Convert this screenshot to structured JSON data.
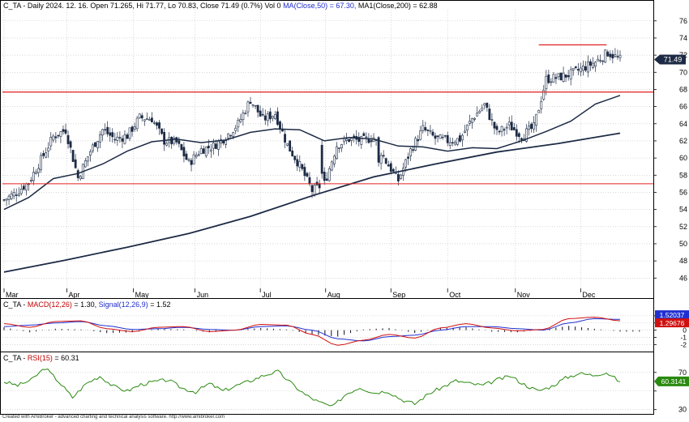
{
  "header": {
    "main_a": "C_TA - Daily 2024. 12. 16. Open 71.265, Hi 71.77, Lo 70.83, Close 71.49 (0.7%) Vol 0",
    "main_b": " MA(Close,50) = 67.30,",
    "main_c": " MA1(Close,200) = 62.88",
    "macd_a": "C_TA - ",
    "macd_b": "MACD(12,26)",
    "macd_c": " = 1.30, ",
    "macd_d": "Signal(12,26,9)",
    "macd_e": " = 1.52",
    "rsi_a": "C_TA - ",
    "rsi_b": "RSI(15)",
    "rsi_c": " = 60.31"
  },
  "footer": "Created with AmiBroker - advanced charting and technical analysis software. http://www.amibroker.com",
  "colors": {
    "price_line": "#1c2a44",
    "candle_up": "#ffffff",
    "candle_down": "#1c2a44",
    "hline": "#e02020",
    "macd": "#d01010",
    "signal": "#2030d0",
    "rsi": "#2a8a10",
    "last_label": "#1c2a44",
    "grid": "#bfbfbf"
  },
  "chart_data": [
    {
      "type": "candlestick",
      "title": "C_TA - Daily",
      "x_labels": [
        "Mar",
        "Apr",
        "May",
        "Jun",
        "Jul",
        "Aug",
        "Sep",
        "Oct",
        "Nov",
        "Dec"
      ],
      "y_ticks": [
        46,
        48,
        50,
        52,
        54,
        56,
        58,
        60,
        62,
        64,
        66,
        68,
        70,
        72,
        74,
        76
      ],
      "ylim": [
        44.8,
        77.3
      ],
      "last_price_label": "71.49",
      "horizontal_lines": [
        {
          "value": 57.0,
          "from": "Mar",
          "to": "end"
        },
        {
          "value": 67.7,
          "from": "Mar",
          "to": "end"
        },
        {
          "value": 73.2,
          "from": "Nov (late)",
          "to": "Dec (mid)"
        }
      ],
      "ma50_points": [
        [
          0,
          54.0
        ],
        [
          10,
          55.4
        ],
        [
          20,
          57.6
        ],
        [
          30,
          58.2
        ],
        [
          40,
          59.3
        ],
        [
          50,
          60.8
        ],
        [
          60,
          61.9
        ],
        [
          70,
          62.2
        ],
        [
          80,
          61.8
        ],
        [
          90,
          62.1
        ],
        [
          100,
          63.0
        ],
        [
          110,
          63.4
        ],
        [
          120,
          63.3
        ],
        [
          130,
          62.0
        ],
        [
          140,
          62.4
        ],
        [
          150,
          62.2
        ],
        [
          160,
          61.4
        ],
        [
          170,
          61.3
        ],
        [
          180,
          60.8
        ],
        [
          190,
          61.2
        ],
        [
          200,
          61.1
        ],
        [
          210,
          62.0
        ],
        [
          220,
          63.1
        ],
        [
          230,
          64.3
        ],
        [
          240,
          66.3
        ],
        [
          250,
          67.3
        ]
      ],
      "ma200_points": [
        [
          0,
          46.7
        ],
        [
          25,
          48.1
        ],
        [
          50,
          49.6
        ],
        [
          75,
          51.2
        ],
        [
          100,
          53.2
        ],
        [
          125,
          55.6
        ],
        [
          150,
          57.8
        ],
        [
          175,
          59.3
        ],
        [
          200,
          60.7
        ],
        [
          225,
          61.7
        ],
        [
          250,
          62.9
        ]
      ],
      "close_points": [
        [
          0,
          55.1
        ],
        [
          5,
          56.0
        ],
        [
          10,
          57.2
        ],
        [
          15,
          59.8
        ],
        [
          20,
          62.5
        ],
        [
          25,
          63.3
        ],
        [
          30,
          57.7
        ],
        [
          35,
          60.8
        ],
        [
          40,
          63.3
        ],
        [
          45,
          62.2
        ],
        [
          50,
          62.6
        ],
        [
          55,
          64.7
        ],
        [
          60,
          64.6
        ],
        [
          65,
          62.0
        ],
        [
          70,
          61.8
        ],
        [
          75,
          59.4
        ],
        [
          80,
          61.0
        ],
        [
          85,
          61.4
        ],
        [
          90,
          62.5
        ],
        [
          95,
          64.0
        ],
        [
          100,
          66.8
        ],
        [
          105,
          64.5
        ],
        [
          110,
          65.2
        ],
        [
          115,
          61.5
        ],
        [
          120,
          59.1
        ],
        [
          125,
          56.2
        ],
        [
          130,
          57.0
        ],
        [
          135,
          61.5
        ],
        [
          140,
          62.2
        ],
        [
          145,
          62.0
        ],
        [
          150,
          62.4
        ],
        [
          155,
          59.6
        ],
        [
          160,
          57.4
        ],
        [
          165,
          60.9
        ],
        [
          170,
          63.4
        ],
        [
          175,
          62.3
        ],
        [
          180,
          62.0
        ],
        [
          185,
          62.2
        ],
        [
          190,
          64.6
        ],
        [
          195,
          66.2
        ],
        [
          200,
          62.9
        ],
        [
          205,
          63.8
        ],
        [
          210,
          62.6
        ],
        [
          215,
          63.6
        ],
        [
          220,
          69.2
        ],
        [
          225,
          69.4
        ],
        [
          230,
          69.8
        ],
        [
          235,
          70.5
        ],
        [
          240,
          71.2
        ],
        [
          245,
          72.3
        ],
        [
          250,
          71.5
        ]
      ]
    },
    {
      "type": "line",
      "title": "MACD",
      "y_ticks": [
        2,
        1,
        0,
        -1,
        -2
      ],
      "ylim": [
        -2.75,
        3.0
      ],
      "series": [
        {
          "name": "MACD(12,26)",
          "values": [
            0.9,
            0.4,
            1.2,
            1.3,
            0.2,
            -0.2,
            0.4,
            0.5,
            -0.2,
            0.0,
            0.8,
            0.7,
            -0.6,
            -2.1,
            -1.4,
            -0.6,
            -1.1,
            0.3,
            0.9,
            0.3,
            -0.1,
            0.1,
            1.6,
            1.8,
            1.3
          ]
        },
        {
          "name": "Signal(12,26,9)",
          "values": [
            0.5,
            0.7,
            1.0,
            1.2,
            0.6,
            0.1,
            0.2,
            0.4,
            0.1,
            0.0,
            0.5,
            0.6,
            0.0,
            -1.2,
            -1.5,
            -0.9,
            -0.7,
            0.0,
            0.5,
            0.5,
            0.2,
            0.0,
            1.0,
            1.6,
            1.5
          ]
        }
      ],
      "last_labels": [
        "1.52037",
        "1.29676"
      ]
    },
    {
      "type": "line",
      "title": "RSI",
      "y_ticks": [
        70,
        50,
        30
      ],
      "ylim": [
        28,
        82
      ],
      "series": [
        {
          "name": "RSI(15)",
          "values": [
            60,
            56,
            62,
            75,
            60,
            43,
            58,
            66,
            55,
            50,
            57,
            60,
            62,
            53,
            49,
            58,
            50,
            56,
            61,
            67,
            71,
            58,
            46,
            38,
            33,
            47,
            54,
            48,
            50,
            41,
            36,
            47,
            54,
            61,
            58,
            56,
            62,
            66,
            57,
            50,
            55,
            64,
            69,
            67,
            70,
            60
          ]
        }
      ],
      "last_label": "60.3141"
    }
  ]
}
